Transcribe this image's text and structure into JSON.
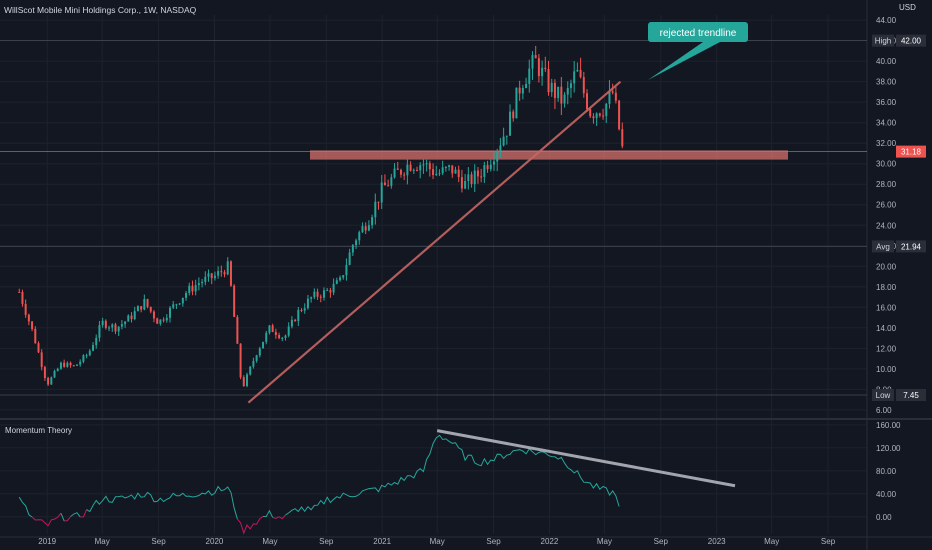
{
  "header": {
    "title": "WillScot Mobile Mini Holdings Corp., 1W, NASDAQ",
    "currency": "USD"
  },
  "indicator": {
    "title": "Momentum Theory"
  },
  "colors": {
    "bg": "#131722",
    "up": "#26a69a",
    "down": "#ef5350",
    "line": "#e0726f",
    "teal": "#25a69a"
  },
  "price_labels": [
    {
      "label": "High",
      "value": 42.0,
      "text": "42.00"
    },
    {
      "label": "",
      "value": 31.18,
      "text": "31.18"
    },
    {
      "label": "Avg",
      "value": 21.94,
      "text": "21.94"
    },
    {
      "label": "Low",
      "value": 7.45,
      "text": "7.45"
    }
  ],
  "annotation": {
    "text": "rejected trendline"
  },
  "chart_data": [
    {
      "type": "candlestick",
      "title": "WillScot Mobile Mini Holdings Corp., 1W, NASDAQ",
      "y_ticks": [
        "6.00",
        "8.00",
        "10.00",
        "12.00",
        "14.00",
        "16.00",
        "18.00",
        "20.00",
        "22.00",
        "24.00",
        "26.00",
        "28.00",
        "30.00",
        "32.00",
        "34.00",
        "36.00",
        "38.00",
        "40.00",
        "42.00",
        "44.00"
      ],
      "ylim": [
        5.5,
        44.5
      ],
      "x_ticks": [
        "2019",
        "May",
        "Sep",
        "2020",
        "May",
        "Sep",
        "2021",
        "May",
        "Sep",
        "2022",
        "May",
        "Sep",
        "2023",
        "May",
        "Sep"
      ],
      "high": 42.0,
      "low": 7.45,
      "average": 21.94,
      "last": 31.18,
      "path_points": [
        [
          "2018-11-01",
          17.5
        ],
        [
          "2018-12-01",
          13.5
        ],
        [
          "2019-01-01",
          8.5
        ],
        [
          "2019-02-01",
          10.5
        ],
        [
          "2019-03-01",
          10.2
        ],
        [
          "2019-04-01",
          11.5
        ],
        [
          "2019-05-01",
          14.5
        ],
        [
          "2019-06-01",
          14.0
        ],
        [
          "2019-07-01",
          15.0
        ],
        [
          "2019-08-01",
          16.5
        ],
        [
          "2019-09-01",
          14.5
        ],
        [
          "2019-10-01",
          16.0
        ],
        [
          "2019-11-01",
          17.5
        ],
        [
          "2019-12-01",
          18.5
        ],
        [
          "2020-01-01",
          19.0
        ],
        [
          "2020-02-01",
          20.0
        ],
        [
          "2020-03-01",
          8.0
        ],
        [
          "2020-04-01",
          11.5
        ],
        [
          "2020-05-01",
          14.0
        ],
        [
          "2020-06-01",
          13.0
        ],
        [
          "2020-07-01",
          15.5
        ],
        [
          "2020-08-01",
          17.0
        ],
        [
          "2020-09-01",
          17.5
        ],
        [
          "2020-10-01",
          18.5
        ],
        [
          "2020-11-01",
          22.5
        ],
        [
          "2020-12-01",
          24.5
        ],
        [
          "2021-01-01",
          27.5
        ],
        [
          "2021-02-01",
          29.0
        ],
        [
          "2021-03-01",
          30.0
        ],
        [
          "2021-04-01",
          30.0
        ],
        [
          "2021-05-01",
          29.0
        ],
        [
          "2021-06-01",
          29.5
        ],
        [
          "2021-07-01",
          28.0
        ],
        [
          "2021-08-01",
          29.0
        ],
        [
          "2021-09-01",
          31.0
        ],
        [
          "2021-10-01",
          33.5
        ],
        [
          "2021-11-01",
          38.0
        ],
        [
          "2021-12-01",
          40.0
        ],
        [
          "2022-01-01",
          37.5
        ],
        [
          "2022-02-01",
          36.0
        ],
        [
          "2022-03-01",
          39.0
        ],
        [
          "2022-04-01",
          35.0
        ],
        [
          "2022-05-01",
          35.5
        ],
        [
          "2022-05-20",
          37.0
        ],
        [
          "2022-06-10",
          31.18
        ]
      ],
      "trendline": [
        [
          "2020-03-15",
          6.7
        ],
        [
          "2022-06-05",
          38.0
        ]
      ],
      "support_zone": [
        30.4,
        31.3
      ],
      "annotation": "rejected trendline"
    },
    {
      "type": "line",
      "title": "Momentum Theory",
      "y_ticks": [
        "0.00",
        "40.00",
        "80.00",
        "120.00",
        "160.00"
      ],
      "ylim": [
        -30,
        165
      ],
      "path_points": [
        [
          "2018-11-01",
          30
        ],
        [
          "2018-12-01",
          -5
        ],
        [
          "2019-01-01",
          -15
        ],
        [
          "2019-02-01",
          0
        ],
        [
          "2019-03-01",
          -2
        ],
        [
          "2019-04-01",
          10
        ],
        [
          "2019-05-01",
          32
        ],
        [
          "2019-06-01",
          30
        ],
        [
          "2019-07-01",
          35
        ],
        [
          "2019-08-01",
          40
        ],
        [
          "2019-09-01",
          30
        ],
        [
          "2019-10-01",
          35
        ],
        [
          "2019-11-01",
          38
        ],
        [
          "2019-12-01",
          42
        ],
        [
          "2020-01-01",
          45
        ],
        [
          "2020-02-01",
          50
        ],
        [
          "2020-03-01",
          -25
        ],
        [
          "2020-04-01",
          -8
        ],
        [
          "2020-05-01",
          5
        ],
        [
          "2020-06-01",
          -3
        ],
        [
          "2020-07-01",
          15
        ],
        [
          "2020-08-01",
          10
        ],
        [
          "2020-09-01",
          30
        ],
        [
          "2020-10-01",
          35
        ],
        [
          "2020-11-01",
          40
        ],
        [
          "2020-12-01",
          45
        ],
        [
          "2021-01-01",
          50
        ],
        [
          "2021-02-01",
          60
        ],
        [
          "2021-03-01",
          70
        ],
        [
          "2021-04-01",
          80
        ],
        [
          "2021-05-01",
          145
        ],
        [
          "2021-06-01",
          130
        ],
        [
          "2021-07-01",
          105
        ],
        [
          "2021-08-01",
          95
        ],
        [
          "2021-09-01",
          100
        ],
        [
          "2021-10-01",
          110
        ],
        [
          "2021-11-01",
          118
        ],
        [
          "2021-12-01",
          112
        ],
        [
          "2022-01-01",
          110
        ],
        [
          "2022-02-01",
          100
        ],
        [
          "2022-03-01",
          75
        ],
        [
          "2022-04-01",
          55
        ],
        [
          "2022-05-01",
          45
        ],
        [
          "2022-05-20",
          42
        ],
        [
          "2022-06-05",
          20
        ]
      ],
      "trendline": [
        [
          "2021-05-01",
          150
        ],
        [
          "2023-02-10",
          54
        ]
      ]
    }
  ]
}
